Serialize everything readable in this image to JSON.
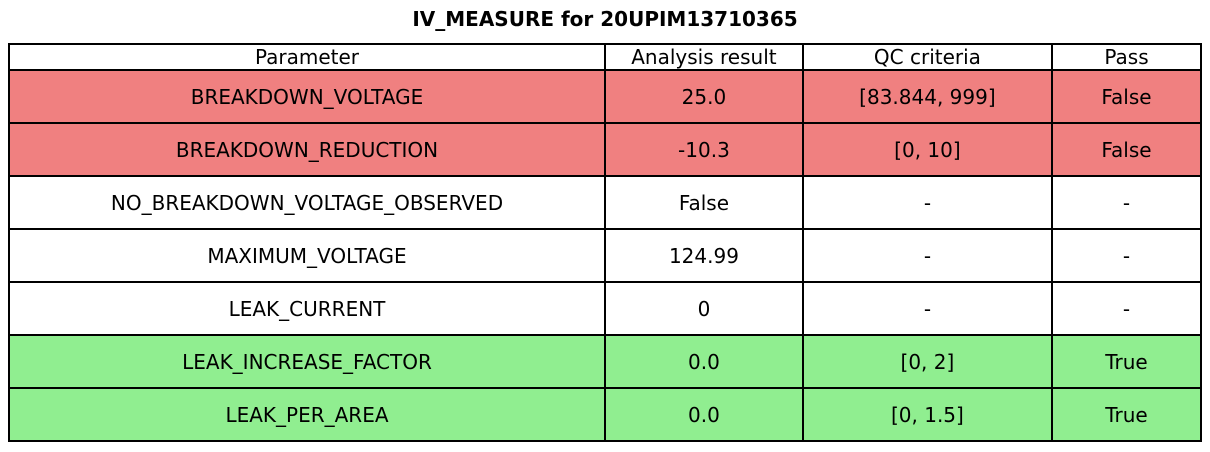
{
  "chart_data": {
    "type": "table",
    "title": "IV_MEASURE for 20UPIM13710365",
    "columns": [
      "Parameter",
      "Analysis result",
      "QC criteria",
      "Pass"
    ],
    "rows": [
      {
        "parameter": "BREAKDOWN_VOLTAGE",
        "analysis_result": "25.0",
        "qc_criteria": "[83.844, 999]",
        "pass": "False",
        "status": "fail"
      },
      {
        "parameter": "BREAKDOWN_REDUCTION",
        "analysis_result": "-10.3",
        "qc_criteria": "[0, 10]",
        "pass": "False",
        "status": "fail"
      },
      {
        "parameter": "NO_BREAKDOWN_VOLTAGE_OBSERVED",
        "analysis_result": "False",
        "qc_criteria": "-",
        "pass": "-",
        "status": "neutral"
      },
      {
        "parameter": "MAXIMUM_VOLTAGE",
        "analysis_result": "124.99",
        "qc_criteria": "-",
        "pass": "-",
        "status": "neutral"
      },
      {
        "parameter": "LEAK_CURRENT",
        "analysis_result": "0",
        "qc_criteria": "-",
        "pass": "-",
        "status": "neutral"
      },
      {
        "parameter": "LEAK_INCREASE_FACTOR",
        "analysis_result": "0.0",
        "qc_criteria": "[0, 2]",
        "pass": "True",
        "status": "pass"
      },
      {
        "parameter": "LEAK_PER_AREA",
        "analysis_result": "0.0",
        "qc_criteria": "[0, 1.5]",
        "pass": "True",
        "status": "pass"
      }
    ],
    "status_colors": {
      "fail": "#f08080",
      "pass": "#90ee90",
      "neutral": "#ffffff"
    },
    "border_color": "#000000",
    "layout": {
      "legend": "none",
      "grid": "full-cell-borders",
      "column_alignment": "center"
    }
  }
}
